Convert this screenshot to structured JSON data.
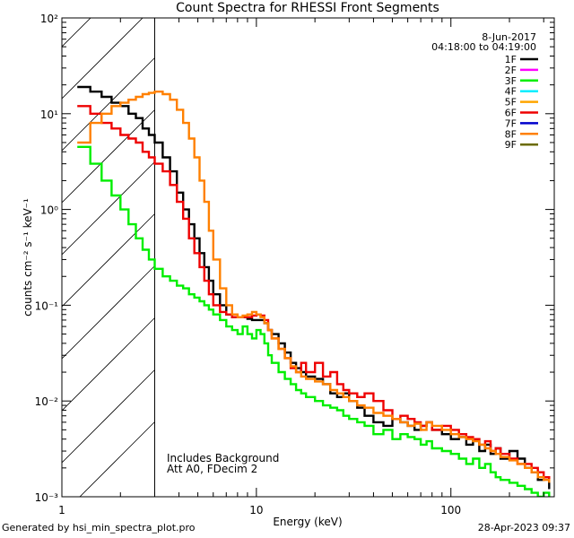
{
  "chart_data": {
    "type": "line",
    "title": "Count Spectra for RHESSI Front Segments",
    "xlabel": "Energy (keV)",
    "ylabel": "counts cm⁻² s⁻¹ keV⁻¹",
    "xscale": "log",
    "yscale": "log",
    "xlim": [
      1,
      340
    ],
    "ylim": [
      0.001,
      100
    ],
    "x_ticks": [
      {
        "value": 1,
        "label": "1"
      },
      {
        "value": 10,
        "label": "10"
      },
      {
        "value": 100,
        "label": "100"
      }
    ],
    "y_ticks": [
      {
        "value": 100,
        "label": "10²"
      },
      {
        "value": 10,
        "label": "10¹"
      },
      {
        "value": 1,
        "label": "10⁰"
      },
      {
        "value": 0.1,
        "label": "10⁻¹"
      },
      {
        "value": 0.01,
        "label": "10⁻²"
      },
      {
        "value": 0.001,
        "label": "10⁻³"
      }
    ],
    "date": "8-Jun-2017",
    "time_range": "04:18:00 to 04:19:00",
    "legend": [
      {
        "name": "1F",
        "color": "#000000"
      },
      {
        "name": "2F",
        "color": "#ff00ff"
      },
      {
        "name": "3F",
        "color": "#00ee00"
      },
      {
        "name": "4F",
        "color": "#00eeff"
      },
      {
        "name": "5F",
        "color": "#ffa500"
      },
      {
        "name": "6F",
        "color": "#ee0000"
      },
      {
        "name": "7F",
        "color": "#0000cc"
      },
      {
        "name": "8F",
        "color": "#ff8000"
      },
      {
        "name": "9F",
        "color": "#6b6b00"
      }
    ],
    "shaded_region": {
      "xmin": 1,
      "xmax": 3,
      "pattern": "diagonal hatch"
    },
    "annotations": [
      "Includes Background",
      "Att A0, FDecim 2"
    ],
    "series": [
      {
        "name": "1F",
        "color": "#000000",
        "x": [
          1.2,
          1.4,
          1.6,
          1.8,
          2.0,
          2.2,
          2.4,
          2.6,
          2.8,
          3.0,
          3.3,
          3.6,
          3.9,
          4.2,
          4.5,
          4.8,
          5.1,
          5.4,
          5.7,
          6.0,
          6.5,
          7.0,
          7.5,
          8.0,
          8.5,
          9.0,
          9.5,
          10,
          10.5,
          11,
          11.5,
          12,
          13,
          14,
          15,
          16,
          17,
          18,
          20,
          22,
          24,
          26,
          28,
          30,
          33,
          36,
          40,
          45,
          50,
          55,
          60,
          65,
          70,
          75,
          80,
          90,
          100,
          110,
          120,
          130,
          140,
          150,
          160,
          170,
          180,
          200,
          220,
          240,
          260,
          280,
          300,
          320
        ],
        "values": [
          19,
          17,
          15,
          13,
          12,
          10,
          9,
          7,
          6,
          5,
          3.5,
          2.5,
          1.5,
          1.0,
          0.7,
          0.5,
          0.35,
          0.25,
          0.18,
          0.13,
          0.1,
          0.08,
          0.075,
          0.075,
          0.075,
          0.072,
          0.07,
          0.07,
          0.07,
          0.065,
          0.055,
          0.05,
          0.04,
          0.032,
          0.025,
          0.022,
          0.02,
          0.018,
          0.017,
          0.015,
          0.012,
          0.011,
          0.012,
          0.01,
          0.0085,
          0.007,
          0.006,
          0.0055,
          0.0065,
          0.006,
          0.0055,
          0.005,
          0.0055,
          0.006,
          0.005,
          0.0045,
          0.004,
          0.0042,
          0.0035,
          0.004,
          0.003,
          0.0035,
          0.0028,
          0.0032,
          0.0025,
          0.003,
          0.0025,
          0.002,
          0.0018,
          0.0015,
          0.0016,
          0.0012
        ]
      },
      {
        "name": "3F",
        "color": "#00ee00",
        "x": [
          1.2,
          1.4,
          1.6,
          1.8,
          2.0,
          2.2,
          2.4,
          2.6,
          2.8,
          3.0,
          3.3,
          3.6,
          3.9,
          4.2,
          4.5,
          4.8,
          5.1,
          5.4,
          5.7,
          6.0,
          6.5,
          7.0,
          7.5,
          8.0,
          8.5,
          9.0,
          9.5,
          10,
          10.5,
          11,
          11.5,
          12,
          13,
          14,
          15,
          16,
          17,
          18,
          20,
          22,
          24,
          26,
          28,
          30,
          33,
          36,
          40,
          45,
          50,
          55,
          60,
          65,
          70,
          75,
          80,
          90,
          100,
          110,
          120,
          130,
          140,
          150,
          160,
          170,
          180,
          200,
          220,
          240,
          260,
          280,
          300,
          320
        ],
        "values": [
          4.5,
          3,
          2,
          1.4,
          1.0,
          0.7,
          0.5,
          0.38,
          0.3,
          0.24,
          0.2,
          0.18,
          0.16,
          0.15,
          0.13,
          0.12,
          0.11,
          0.1,
          0.09,
          0.08,
          0.07,
          0.06,
          0.055,
          0.05,
          0.06,
          0.05,
          0.045,
          0.055,
          0.05,
          0.04,
          0.03,
          0.025,
          0.02,
          0.017,
          0.015,
          0.013,
          0.012,
          0.011,
          0.01,
          0.009,
          0.0085,
          0.008,
          0.007,
          0.0065,
          0.006,
          0.0055,
          0.0045,
          0.005,
          0.004,
          0.0045,
          0.0042,
          0.004,
          0.0035,
          0.0038,
          0.0032,
          0.003,
          0.0028,
          0.0025,
          0.0022,
          0.0025,
          0.002,
          0.0022,
          0.0018,
          0.0016,
          0.0015,
          0.0014,
          0.0013,
          0.0012,
          0.0011,
          0.001,
          0.0011,
          0.001
        ]
      },
      {
        "name": "6F",
        "color": "#ee0000",
        "x": [
          1.2,
          1.4,
          1.6,
          1.8,
          2.0,
          2.2,
          2.4,
          2.6,
          2.8,
          3.0,
          3.3,
          3.6,
          3.9,
          4.2,
          4.5,
          4.8,
          5.1,
          5.4,
          5.7,
          6.0,
          6.5,
          7.0,
          7.5,
          8.0,
          8.5,
          9.0,
          9.5,
          10,
          10.5,
          11,
          11.5,
          12,
          13,
          14,
          15,
          16,
          17,
          18,
          20,
          22,
          24,
          26,
          28,
          30,
          33,
          36,
          40,
          45,
          50,
          55,
          60,
          65,
          70,
          75,
          80,
          90,
          100,
          110,
          120,
          130,
          140,
          150,
          160,
          170,
          180,
          200,
          220,
          240,
          260,
          280,
          300,
          320
        ],
        "values": [
          12,
          10,
          8,
          7,
          6,
          5.5,
          5,
          4,
          3.5,
          3,
          2.5,
          1.8,
          1.2,
          0.8,
          0.5,
          0.35,
          0.25,
          0.18,
          0.13,
          0.1,
          0.085,
          0.08,
          0.075,
          0.075,
          0.075,
          0.075,
          0.078,
          0.08,
          0.078,
          0.07,
          0.055,
          0.045,
          0.035,
          0.028,
          0.022,
          0.02,
          0.025,
          0.02,
          0.025,
          0.018,
          0.02,
          0.015,
          0.013,
          0.012,
          0.011,
          0.012,
          0.01,
          0.008,
          0.0065,
          0.007,
          0.0065,
          0.006,
          0.0055,
          0.006,
          0.005,
          0.0055,
          0.005,
          0.0045,
          0.0042,
          0.004,
          0.0035,
          0.0038,
          0.003,
          0.0032,
          0.0028,
          0.0025,
          0.0022,
          0.0022,
          0.002,
          0.0018,
          0.0016,
          0.0015
        ]
      },
      {
        "name": "8F",
        "color": "#ff8000",
        "x": [
          1.2,
          1.4,
          1.6,
          1.8,
          2.0,
          2.2,
          2.4,
          2.6,
          2.8,
          3.0,
          3.3,
          3.6,
          3.9,
          4.2,
          4.5,
          4.8,
          5.1,
          5.4,
          5.7,
          6.0,
          6.5,
          7.0,
          7.5,
          8.0,
          8.5,
          9.0,
          9.5,
          10,
          10.5,
          11,
          11.5,
          12,
          13,
          14,
          15,
          16,
          17,
          18,
          20,
          22,
          24,
          26,
          28,
          30,
          33,
          36,
          40,
          45,
          50,
          55,
          60,
          65,
          70,
          75,
          80,
          90,
          100,
          110,
          120,
          130,
          140,
          150,
          160,
          170,
          180,
          200,
          220,
          240,
          260,
          280,
          300,
          320
        ],
        "values": [
          5,
          8,
          10,
          12,
          13,
          14,
          15,
          16,
          16.5,
          17,
          16,
          14,
          11,
          8,
          5.5,
          3.5,
          2,
          1.2,
          0.6,
          0.3,
          0.15,
          0.1,
          0.08,
          0.075,
          0.078,
          0.08,
          0.085,
          0.08,
          0.075,
          0.065,
          0.055,
          0.045,
          0.035,
          0.028,
          0.023,
          0.02,
          0.018,
          0.017,
          0.016,
          0.015,
          0.013,
          0.012,
          0.011,
          0.01,
          0.009,
          0.0085,
          0.0075,
          0.007,
          0.0065,
          0.006,
          0.0055,
          0.0058,
          0.005,
          0.006,
          0.0055,
          0.005,
          0.0045,
          0.0042,
          0.004,
          0.0038,
          0.0035,
          0.0032,
          0.003,
          0.0028,
          0.0026,
          0.0024,
          0.0022,
          0.002,
          0.0018,
          0.0016,
          0.0015,
          0.0014
        ]
      }
    ]
  },
  "footer": {
    "left": "Generated by hsi_min_spectra_plot.pro",
    "right": "28-Apr-2023 09:37"
  }
}
